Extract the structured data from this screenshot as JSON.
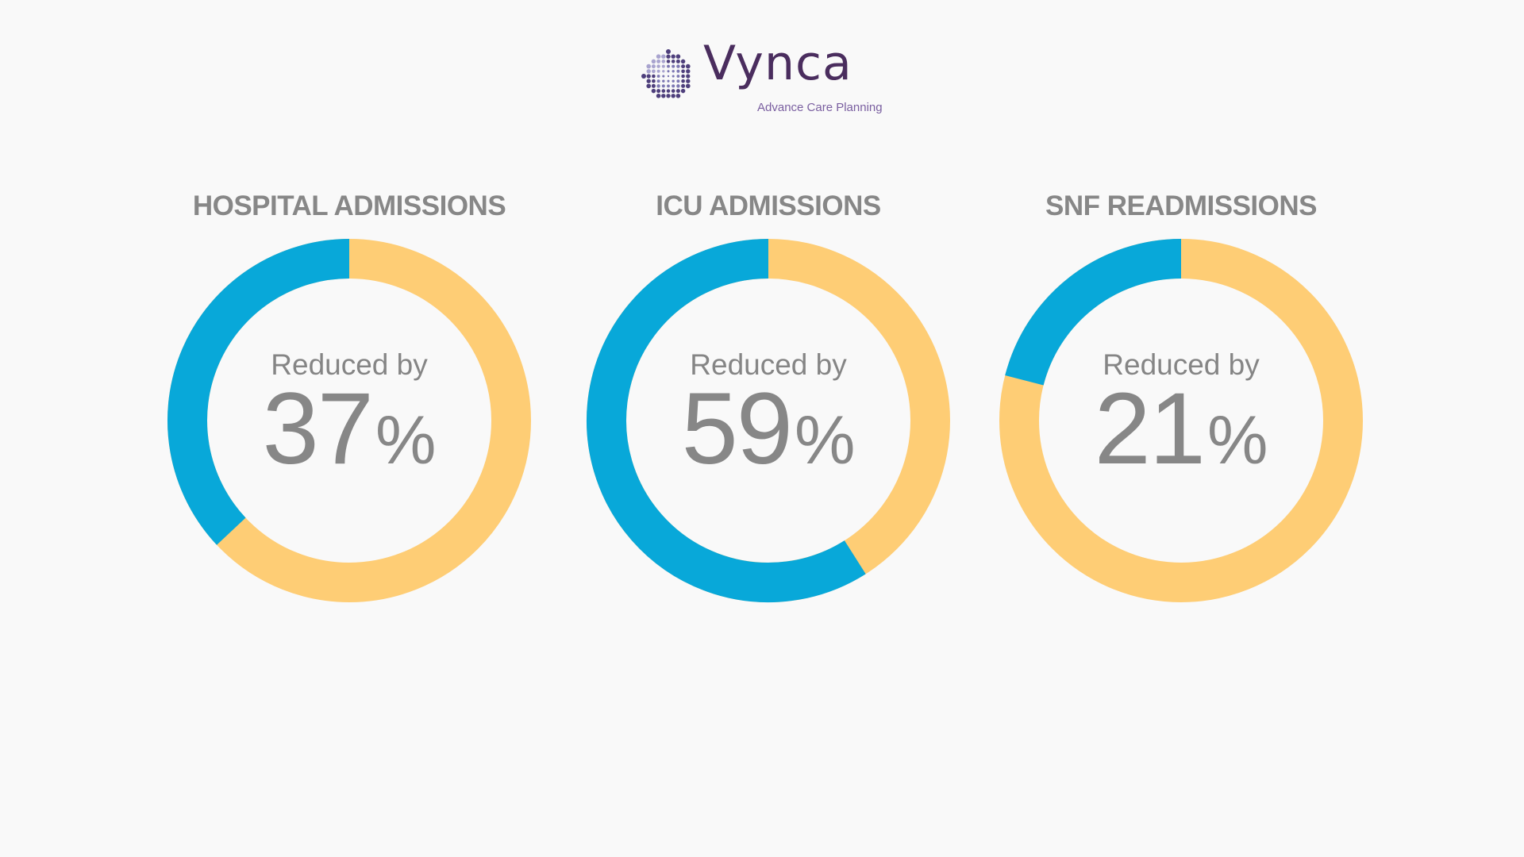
{
  "brand": {
    "name": "Vynca",
    "tagline": "Advance Care Planning",
    "name_color": "#4a2d5e",
    "tagline_color": "#7a5fa0"
  },
  "colors": {
    "highlight": "#08a8d9",
    "remainder": "#fecd75",
    "text": "#878787",
    "background": "#f9f9f9"
  },
  "chart_data": [
    {
      "type": "pie",
      "title": "HOSPITAL ADMISSIONS",
      "caption": "Reduced by",
      "value": 37,
      "unit": "%"
    },
    {
      "type": "pie",
      "title": "ICU ADMISSIONS",
      "caption": "Reduced by",
      "value": 59,
      "unit": "%"
    },
    {
      "type": "pie",
      "title": "SNF READMISSIONS",
      "caption": "Reduced by",
      "value": 21,
      "unit": "%"
    }
  ]
}
